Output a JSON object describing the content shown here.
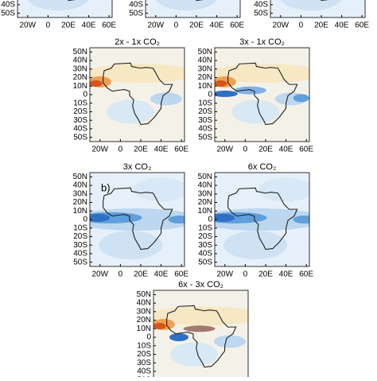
{
  "lat_ticks": [
    {
      "value": 50,
      "label": "50N"
    },
    {
      "value": 40,
      "label": "40N"
    },
    {
      "value": 30,
      "label": "30N"
    },
    {
      "value": 20,
      "label": "20N"
    },
    {
      "value": 10,
      "label": "10N"
    },
    0,
    {
      "value": -10,
      "label": "10S"
    },
    {
      "value": -20,
      "label": "20S"
    },
    {
      "value": -30,
      "label": "30S"
    },
    {
      "value": -40,
      "label": "40S"
    },
    {
      "value": -50,
      "label": "50S"
    }
  ],
  "lon_ticks": [
    {
      "value": -20,
      "label": "20W"
    },
    0,
    {
      "value": 20,
      "label": "20E"
    },
    {
      "value": 40,
      "label": "40E"
    },
    {
      "value": 60,
      "label": "60E"
    }
  ],
  "panels": [
    {},
    {},
    {},
    {
      "title": "2x - 1x CO₂"
    },
    {
      "title": "3x - 1x CO₂"
    },
    {
      "title": "3x CO₂",
      "label": "b)"
    },
    {
      "title": "6x CO₂"
    },
    {
      "title": "6x - 3x CO₂"
    }
  ]
}
